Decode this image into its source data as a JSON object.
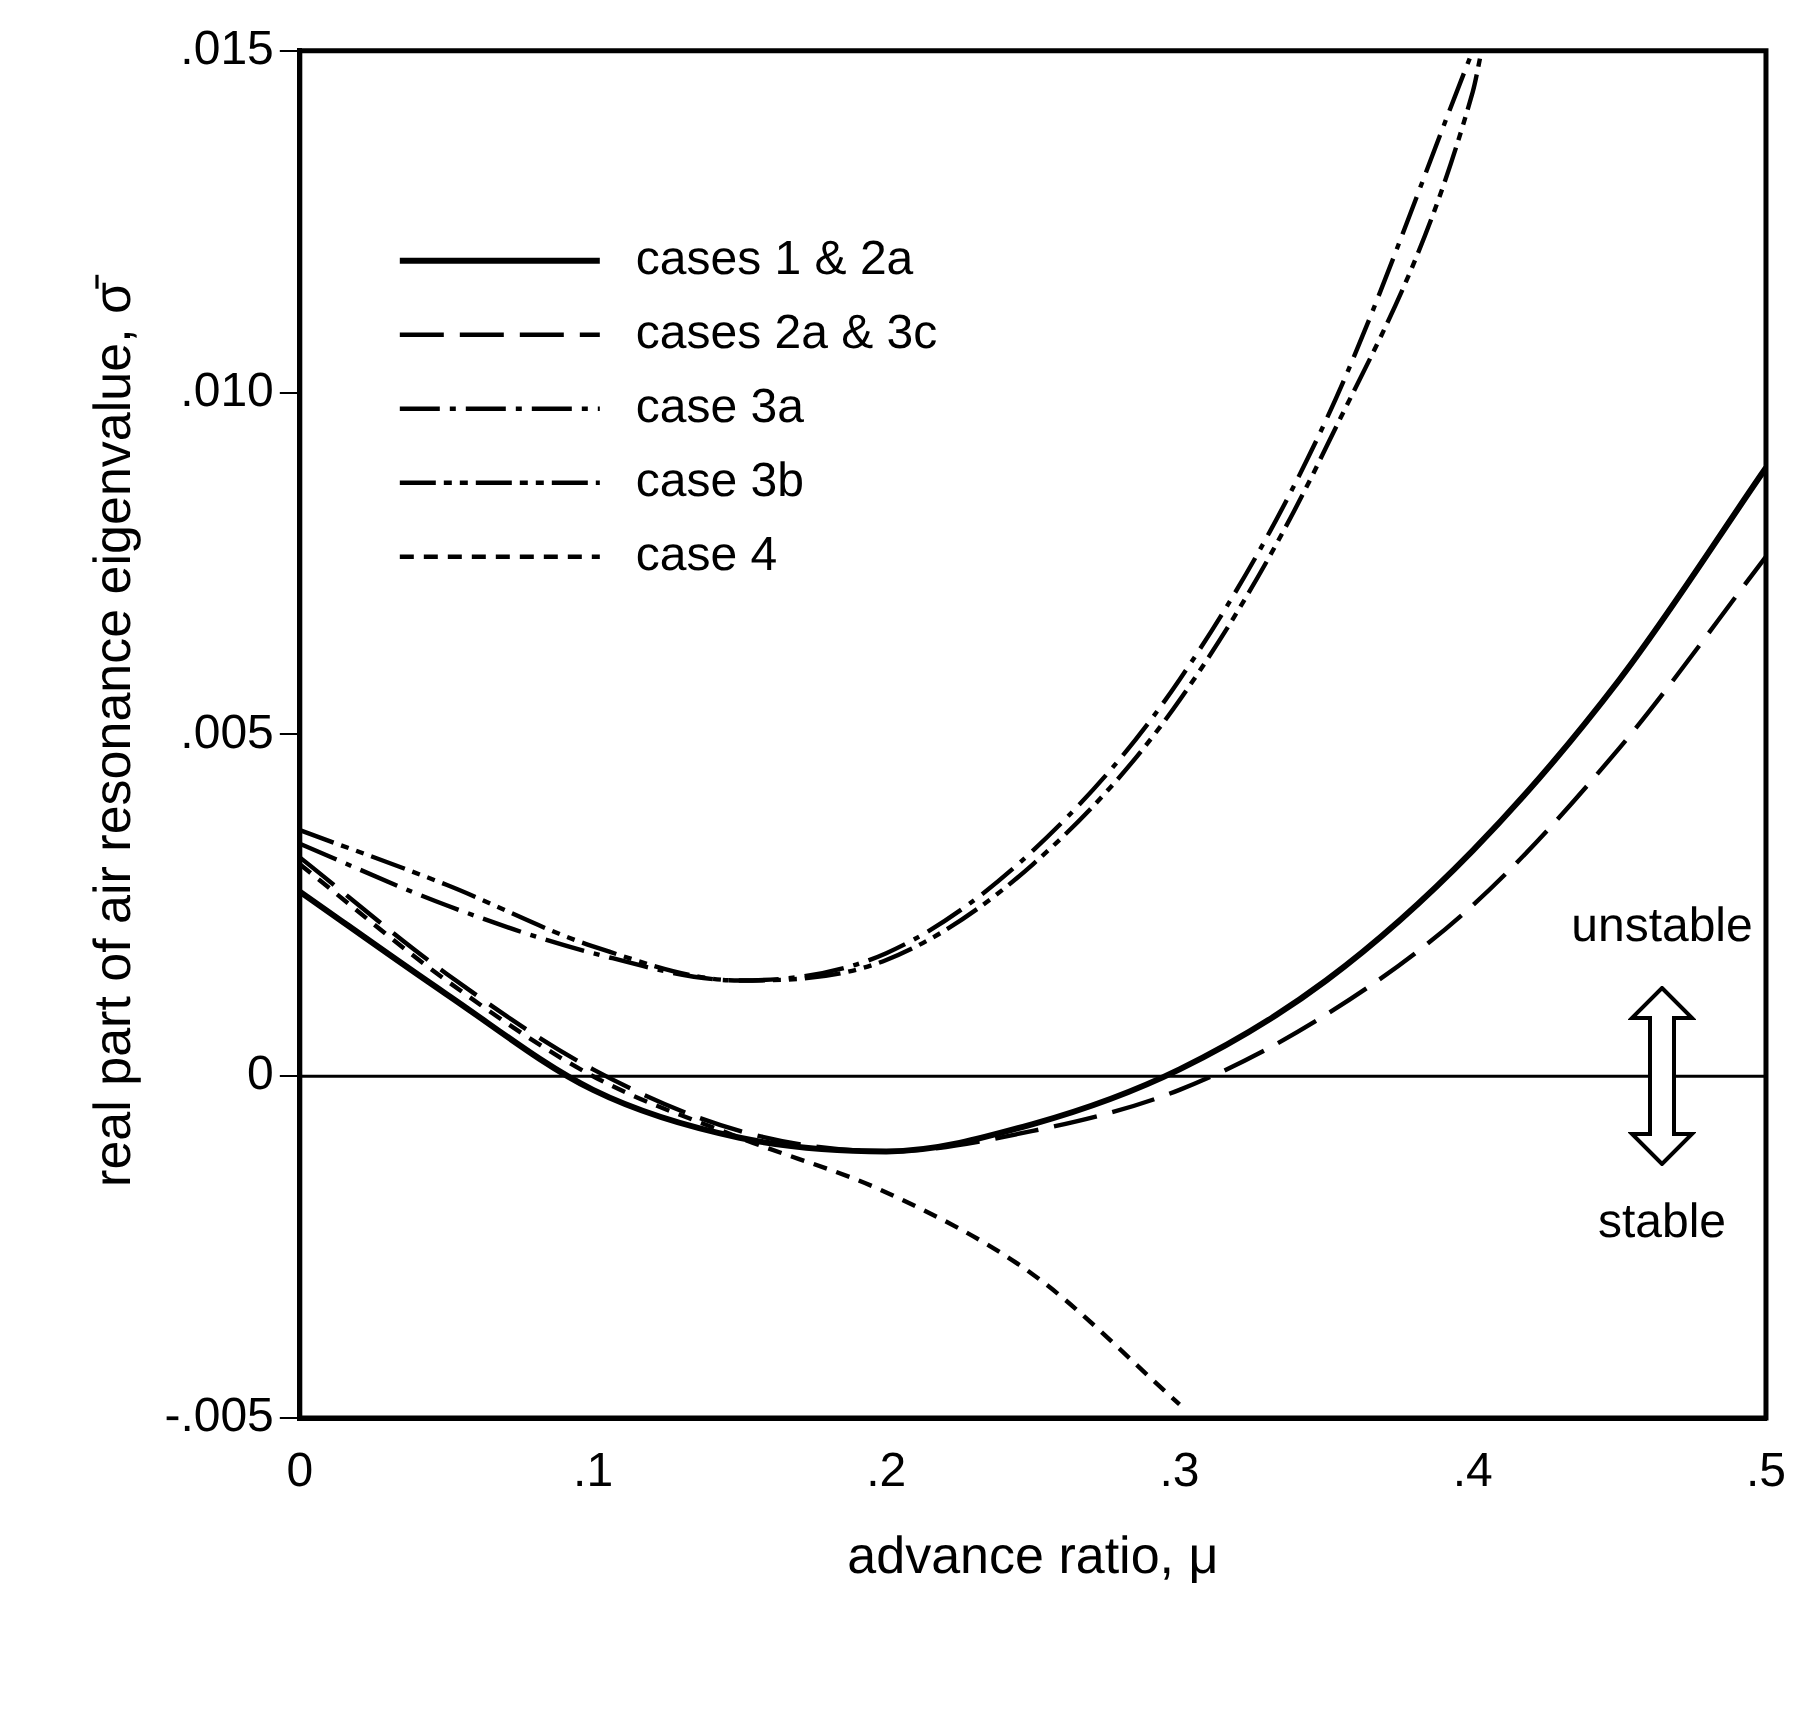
{
  "chart_data": {
    "type": "line",
    "xlabel": "advance ratio, μ",
    "ylabel": "real part of air resonance eigenvalue, σ̄",
    "xlim": [
      0,
      0.5
    ],
    "xticks": [
      0,
      {
        "value": 0.1,
        "label": ".1"
      },
      {
        "value": 0.2,
        "label": ".2"
      },
      {
        "value": 0.3,
        "label": ".3"
      },
      {
        "value": 0.4,
        "label": ".4"
      },
      {
        "value": 0.5,
        "label": ".5"
      }
    ],
    "ylim": [
      -0.005,
      0.015
    ],
    "yticks": [
      {
        "value": -0.005,
        "label": "-.005"
      },
      0,
      {
        "value": 0.005,
        "label": ".005"
      },
      {
        "value": 0.01,
        "label": ".010"
      },
      {
        "value": 0.015,
        "label": ".015"
      }
    ],
    "grid": false,
    "legend": "top left",
    "marker": "none",
    "series": [
      {
        "name": "cases 1 & 2a",
        "color": "#000000",
        "line_style": "solid",
        "x": [
          0,
          0.05,
          0.1,
          0.15,
          0.2,
          0.25,
          0.3,
          0.35,
          0.4,
          0.45,
          0.5
        ],
        "values": [
          0.0027,
          0.0012,
          -0.0002,
          -0.0009,
          -0.0011,
          -0.0007,
          0.0001,
          0.0014,
          0.0033,
          0.0058,
          0.0089
        ]
      },
      {
        "name": "cases 2a & 3c",
        "color": "#000000",
        "line_style": "dashed",
        "x": [
          0,
          0.05,
          0.1,
          0.15,
          0.2,
          0.25,
          0.3,
          0.35,
          0.4,
          0.45,
          0.5
        ],
        "values": [
          0.0032,
          0.0015,
          0.0001,
          -0.0008,
          -0.0011,
          -0.0008,
          -0.0002,
          0.0009,
          0.0025,
          0.0048,
          0.0076
        ]
      },
      {
        "name": "case 3a",
        "color": "#000000",
        "line_style": "dashdot",
        "x": [
          0,
          0.05,
          0.1,
          0.15,
          0.2,
          0.25,
          0.3,
          0.35,
          0.4
        ],
        "values": [
          0.0034,
          0.0025,
          0.0018,
          0.0014,
          0.0018,
          0.0033,
          0.0058,
          0.0096,
          0.015
        ]
      },
      {
        "name": "case 3b",
        "color": "#000000",
        "line_style": "dashdotdot",
        "x": [
          0,
          0.05,
          0.1,
          0.15,
          0.2,
          0.25,
          0.3,
          0.35,
          0.4,
          0.403
        ],
        "values": [
          0.0036,
          0.0028,
          0.0019,
          0.0014,
          0.0017,
          0.0031,
          0.0055,
          0.0092,
          0.0144,
          0.015
        ]
      },
      {
        "name": "case 4",
        "color": "#000000",
        "line_style": "dotted",
        "x": [
          0,
          0.05,
          0.1,
          0.15,
          0.2,
          0.25,
          0.3
        ],
        "values": [
          0.0031,
          0.0014,
          0.0,
          -0.0009,
          -0.0017,
          -0.0029,
          -0.0048
        ]
      }
    ],
    "ref_lines": [
      {
        "axis": "y",
        "value": 0,
        "color": "#000000"
      }
    ],
    "annotations": [
      "unstable",
      "stable"
    ]
  }
}
